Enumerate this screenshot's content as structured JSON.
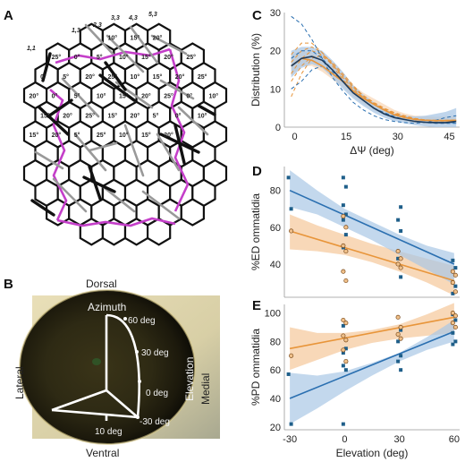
{
  "panels": {
    "A": {
      "letter": "A",
      "angle_labels": [
        "10°",
        "15°",
        "20°",
        "25°",
        "0°",
        "5°",
        "10°",
        "15°",
        "20°",
        "25°",
        "0°",
        "5°",
        "20°",
        "25°",
        "10°",
        "15°",
        "20°",
        "25°",
        "20°",
        "0°",
        "5°",
        "10°",
        "15°",
        "20°",
        "25°",
        "0°",
        "10°",
        "15°",
        "20°",
        "25°",
        "15°",
        "20°",
        "5°",
        "0°",
        "10°",
        "15°",
        "20°",
        "5°",
        "25°",
        "10°",
        "15°",
        "20°"
      ],
      "coord_labels": [
        "1,1",
        "1,3",
        "2,3",
        "3,3",
        "4,3",
        "5,3"
      ]
    },
    "B": {
      "letter": "B",
      "dorsal": "Dorsal",
      "ventral": "Ventral",
      "lateral": "Lateral",
      "medial": "Medial",
      "azimuth": "Azimuth",
      "elevation": "Elevation",
      "ticks": [
        "60 deg",
        "30 deg",
        "0 deg",
        "-30 deg",
        "10 deg"
      ]
    },
    "C": {
      "letter": "C"
    },
    "D": {
      "letter": "D"
    },
    "E": {
      "letter": "E"
    }
  },
  "colors": {
    "blue": "#2a6fb0",
    "orange": "#e8953a",
    "magenta": "#c43fc9",
    "blue_band": "#a9c7e6",
    "orange_band": "#f6cba0"
  },
  "chart_data": [
    {
      "panel": "C",
      "type": "line",
      "xlabel": "ΔΨ (deg)",
      "ylabel": "Distribution (%)",
      "xticks": [
        "0",
        "15",
        "30",
        "45"
      ],
      "yticks": [
        "0",
        "10",
        "20",
        "30"
      ],
      "xlim": [
        -3,
        48
      ],
      "ylim": [
        0,
        30
      ],
      "x": [
        -1,
        2,
        5,
        8,
        11,
        14,
        17,
        20,
        23,
        26,
        29,
        32,
        35,
        38,
        41,
        44,
        47
      ],
      "series": [
        {
          "color": "#2a6fb0",
          "values": [
            16,
            18,
            18.5,
            17.5,
            15,
            12,
            9,
            7,
            5,
            3.5,
            2.5,
            2,
            1.5,
            1.3,
            1.2,
            1.2,
            1.5
          ],
          "lower": [
            13,
            15.5,
            16.5,
            15.5,
            13,
            10,
            7.5,
            5.5,
            3.8,
            2.5,
            1.6,
            1,
            0.5,
            0.2,
            0,
            0,
            0
          ],
          "upper": [
            20,
            21,
            21,
            20,
            17.5,
            14.5,
            11,
            8.5,
            6.5,
            4.8,
            3.6,
            3,
            2.8,
            3,
            3.5,
            4,
            5
          ]
        },
        {
          "color": "#e8953a",
          "values": [
            16,
            18,
            17.5,
            16,
            14,
            12,
            9.5,
            7.5,
            6,
            4.5,
            3.2,
            2.5,
            2,
            1.8,
            1.7,
            1.7,
            1.8
          ],
          "lower": [
            13.5,
            16,
            16,
            14.5,
            12.5,
            10.5,
            8,
            6,
            4.5,
            3.2,
            2.2,
            1.5,
            1,
            0.8,
            0.8,
            0.8,
            1
          ],
          "upper": [
            19,
            20,
            19.5,
            18,
            16,
            13.8,
            11,
            9,
            7.5,
            6,
            4.5,
            3.6,
            3,
            2.9,
            2.7,
            2.8,
            3
          ]
        }
      ],
      "dashed_blue": [
        [
          29,
          27,
          23,
          18,
          13,
          9.5,
          6.5,
          4.5,
          3,
          2,
          1.5,
          1.2,
          1,
          1.3,
          1.8,
          2.5,
          3
        ],
        [
          10,
          12,
          15,
          16,
          14.5,
          12,
          9,
          7,
          5,
          3.8,
          2.8,
          2,
          1.5,
          1.2,
          1,
          1,
          1
        ],
        [
          18,
          20,
          20,
          18,
          15,
          12,
          9,
          7,
          5,
          3.5,
          2.5,
          2,
          1.5,
          1.2,
          1.1,
          1.1,
          1.2
        ]
      ],
      "dashed_orange": [
        [
          8,
          14,
          18,
          19,
          17,
          14,
          11,
          8,
          6,
          4.5,
          3.5,
          2.5,
          2,
          1.8,
          1.7,
          1.7,
          1.8
        ],
        [
          19,
          22,
          22,
          19.5,
          16,
          12.5,
          9.5,
          7.5,
          6,
          4.6,
          3.5,
          2.7,
          2.1,
          1.8,
          1.7,
          1.6,
          1.7
        ],
        [
          14,
          18,
          20,
          19,
          16.5,
          13.5,
          10.5,
          8,
          6.3,
          4.8,
          3.6,
          2.8,
          2.2,
          1.9,
          1.8,
          1.8,
          1.9
        ],
        [
          17,
          20,
          21,
          19.5,
          16.5,
          13,
          10,
          7.8,
          6,
          4.4,
          3.3,
          2.6,
          2,
          1.7,
          1.6,
          1.6,
          1.7
        ],
        [
          12,
          16,
          18.5,
          18.5,
          16.5,
          13.5,
          10.5,
          8.3,
          6.5,
          5,
          3.8,
          3,
          2.3,
          1.9,
          1.7,
          1.7,
          1.8
        ]
      ]
    },
    {
      "panel": "D",
      "type": "scatter",
      "xlabel": "",
      "ylabel": "%ED ommatidia",
      "xticks": [
        "-30",
        "0",
        "30",
        "60"
      ],
      "yticks": [
        "40",
        "60",
        "80"
      ],
      "xlim": [
        -33,
        63
      ],
      "ylim": [
        22,
        93
      ],
      "blue_line": {
        "x": [
          -30,
          60
        ],
        "y": [
          80,
          40
        ]
      },
      "orange_line": {
        "x": [
          -30,
          60
        ],
        "y": [
          58,
          31
        ]
      },
      "blue_band": {
        "x": [
          -30,
          -15,
          0,
          15,
          30,
          45,
          60
        ],
        "lower": [
          71,
          67,
          60,
          53,
          45,
          37,
          29
        ],
        "upper": [
          91,
          80,
          70,
          63,
          56,
          50,
          46
        ]
      },
      "orange_band": {
        "x": [
          -30,
          -15,
          0,
          15,
          30,
          45,
          60
        ],
        "lower": [
          48,
          47,
          45,
          41,
          36,
          30,
          23
        ],
        "upper": [
          67,
          61,
          56,
          51,
          47,
          43,
          39
        ]
      },
      "blue_points": {
        "x": [
          -30,
          -30,
          0,
          0,
          0,
          0,
          0,
          0,
          0,
          30,
          30,
          30,
          30,
          30,
          60,
          60,
          60,
          60,
          60
        ],
        "y": [
          87,
          70,
          87,
          82,
          72,
          67,
          64,
          56,
          49,
          71,
          64,
          58,
          43,
          33,
          42,
          38,
          30,
          28,
          24
        ]
      },
      "orange_points": {
        "x": [
          -30,
          0,
          0,
          0,
          0,
          0,
          0,
          30,
          30,
          30,
          30,
          60,
          60,
          60,
          60
        ],
        "y": [
          58,
          66,
          60,
          50,
          47,
          36,
          31,
          47,
          43,
          40,
          38,
          36,
          34,
          30,
          25
        ]
      }
    },
    {
      "panel": "E",
      "type": "scatter",
      "xlabel": "Elevation (deg)",
      "ylabel": "%PD ommatidia",
      "xticks": [
        "-30",
        "0",
        "30",
        "60"
      ],
      "yticks": [
        "20",
        "40",
        "60",
        "80",
        "100"
      ],
      "xlim": [
        -33,
        63
      ],
      "ylim": [
        18,
        106
      ],
      "blue_line": {
        "x": [
          -30,
          60
        ],
        "y": [
          40,
          87
        ]
      },
      "orange_line": {
        "x": [
          -30,
          60
        ],
        "y": [
          75,
          97
        ]
      },
      "blue_band": {
        "x": [
          -30,
          -15,
          0,
          15,
          30,
          45,
          60
        ],
        "lower": [
          22,
          33,
          45,
          56,
          66,
          74,
          80
        ],
        "upper": [
          58,
          56,
          59,
          65,
          72,
          83,
          95
        ]
      },
      "orange_band": {
        "x": [
          -30,
          -15,
          0,
          15,
          30,
          45,
          60
        ],
        "lower": [
          60,
          67,
          74,
          79,
          82,
          84,
          86
        ],
        "upper": [
          90,
          86,
          86,
          88,
          92,
          99,
          107
        ]
      },
      "blue_points": {
        "x": [
          -30,
          -30,
          0,
          0,
          0,
          0,
          0,
          0,
          0,
          30,
          30,
          30,
          30,
          30,
          60,
          60,
          60,
          60,
          60
        ],
        "y": [
          57,
          22,
          91,
          75,
          72,
          66,
          63,
          60,
          22,
          88,
          80,
          70,
          66,
          60,
          99,
          95,
          86,
          80,
          78
        ]
      },
      "orange_points": {
        "x": [
          -30,
          0,
          0,
          0,
          0,
          0,
          0,
          30,
          30,
          30,
          30,
          60,
          60,
          60,
          60
        ],
        "y": [
          70,
          95,
          93,
          84,
          81,
          74,
          66,
          97,
          90,
          85,
          82,
          100,
          98,
          93,
          90
        ]
      }
    }
  ]
}
